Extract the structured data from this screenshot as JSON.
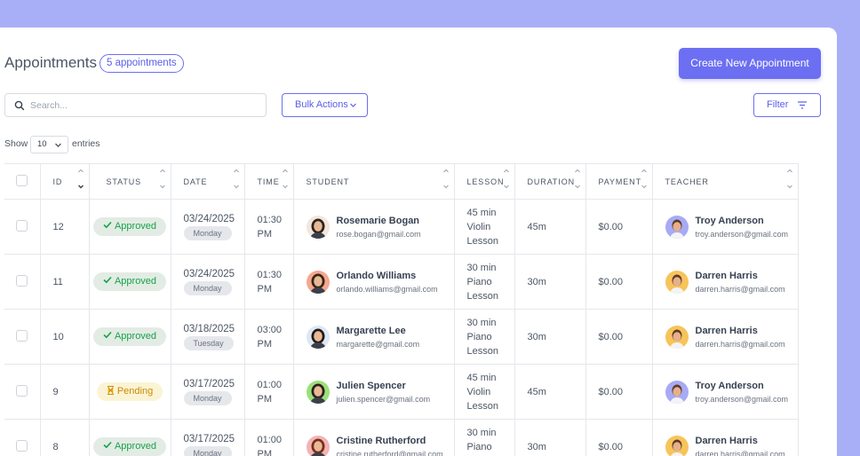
{
  "header": {
    "title": "Appointments",
    "count_badge": "5 appointments",
    "create_button": "Create New Appointment"
  },
  "toolbar": {
    "search_placeholder": "Search...",
    "bulk_actions": "Bulk Actions",
    "filter": "Filter"
  },
  "entries": {
    "show_label": "Show",
    "value": "10",
    "entries_label": "entries"
  },
  "columns": [
    "ID",
    "STATUS",
    "DATE",
    "TIME",
    "STUDENT",
    "LESSON",
    "DURATION",
    "PAYMENT",
    "TEACHER"
  ],
  "rows": [
    {
      "id": "12",
      "status": "Approved",
      "date": "03/24/2025",
      "day": "Monday",
      "time_1": "01:30",
      "time_2": "PM",
      "student_name": "Rosemarie Bogan",
      "student_email": "rose.bogan@gmail.com",
      "lesson_1": "45 min",
      "lesson_2": "Violin",
      "lesson_3": "Lesson",
      "duration": "45m",
      "payment": "$0.00",
      "teacher_name": "Troy Anderson",
      "teacher_email": "troy.anderson@gmail.com"
    },
    {
      "id": "11",
      "status": "Approved",
      "date": "03/24/2025",
      "day": "Monday",
      "time_1": "01:30",
      "time_2": "PM",
      "student_name": "Orlando Williams",
      "student_email": "orlando.williams@gmail.com",
      "lesson_1": "30 min",
      "lesson_2": "Piano",
      "lesson_3": "Lesson",
      "duration": "30m",
      "payment": "$0.00",
      "teacher_name": "Darren Harris",
      "teacher_email": "darren.harris@gmail.com"
    },
    {
      "id": "10",
      "status": "Approved",
      "date": "03/18/2025",
      "day": "Tuesday",
      "time_1": "03:00",
      "time_2": "PM",
      "student_name": "Margarette Lee",
      "student_email": "margarette@gmail.com",
      "lesson_1": "30 min",
      "lesson_2": "Piano",
      "lesson_3": "Lesson",
      "duration": "30m",
      "payment": "$0.00",
      "teacher_name": "Darren Harris",
      "teacher_email": "darren.harris@gmail.com"
    },
    {
      "id": "9",
      "status": "Pending",
      "date": "03/17/2025",
      "day": "Monday",
      "time_1": "01:00",
      "time_2": "PM",
      "student_name": "Julien Spencer",
      "student_email": "julien.spencer@gmail.com",
      "lesson_1": "45 min",
      "lesson_2": "Violin",
      "lesson_3": "Lesson",
      "duration": "45m",
      "payment": "$0.00",
      "teacher_name": "Troy Anderson",
      "teacher_email": "troy.anderson@gmail.com"
    },
    {
      "id": "8",
      "status": "Approved",
      "date": "03/17/2025",
      "day": "Monday",
      "time_1": "01:00",
      "time_2": "PM",
      "student_name": "Cristine Rutherford",
      "student_email": "cristine.rutherford@gmail.com",
      "lesson_1": "30 min",
      "lesson_2": "Piano",
      "lesson_3": "Lesson",
      "duration": "30m",
      "payment": "$0.00",
      "teacher_name": "Darren Harris",
      "teacher_email": "darren.harris@gmail.com"
    }
  ],
  "colors": {
    "accent": "#6c6ff2",
    "approved": "#16a34a",
    "pending": "#c98c05",
    "background": "#a8aff7"
  }
}
